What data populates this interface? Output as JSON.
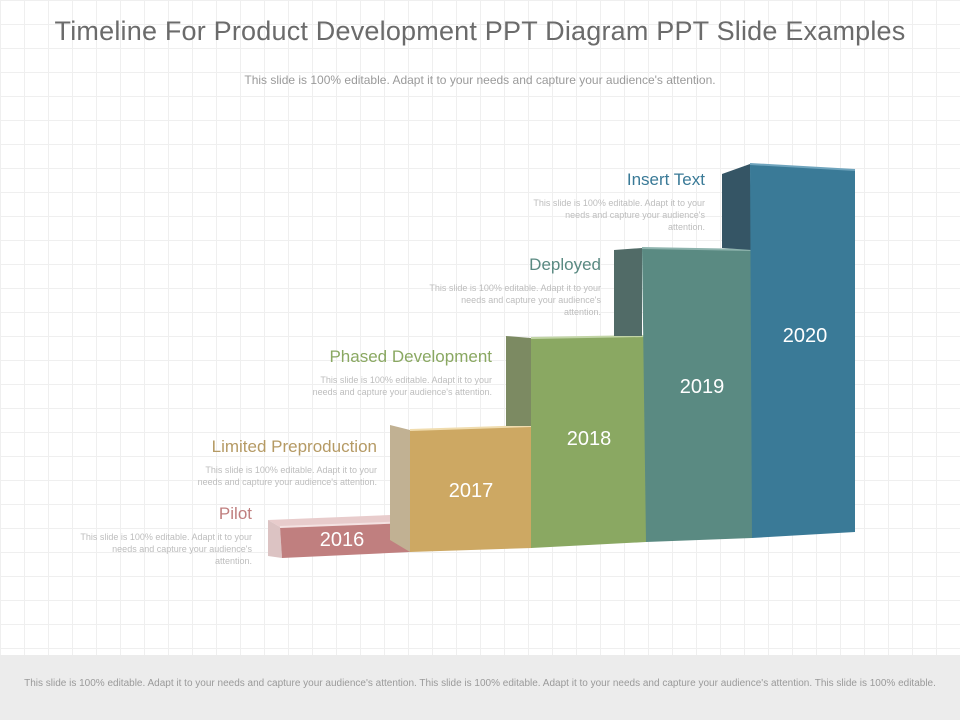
{
  "title": "Timeline For Product Development PPT Diagram PPT Slide Examples",
  "subtitle": "This slide is 100% editable. Adapt it to your needs and capture your audience's attention.",
  "steps": [
    {
      "year": "2016",
      "heading": "Pilot",
      "desc": "This slide is 100% editable. Adapt it to your needs and capture your audience's attention.",
      "color": "#c07f7f"
    },
    {
      "year": "2017",
      "heading": "Limited Preproduction",
      "desc": "This slide is 100% editable. Adapt it to your needs and capture your audience's attention.",
      "color": "#cda863"
    },
    {
      "year": "2018",
      "heading": "Phased Development",
      "desc": "This slide is 100% editable. Adapt it to your needs and capture your audience's attention.",
      "color": "#8aa862"
    },
    {
      "year": "2019",
      "heading": "Deployed",
      "desc": "This slide is 100% editable. Adapt it to your needs and capture your audience's attention.",
      "color": "#5a8a82"
    },
    {
      "year": "2020",
      "heading": "Insert Text",
      "desc": "This slide is 100% editable. Adapt it to your needs and capture your audience's attention.",
      "color": "#3a7a97"
    }
  ],
  "footer": "This slide is 100% editable. Adapt it to your needs and capture your audience's attention. This slide is 100% editable. Adapt it to your needs and capture your audience's attention. This slide is 100% editable."
}
